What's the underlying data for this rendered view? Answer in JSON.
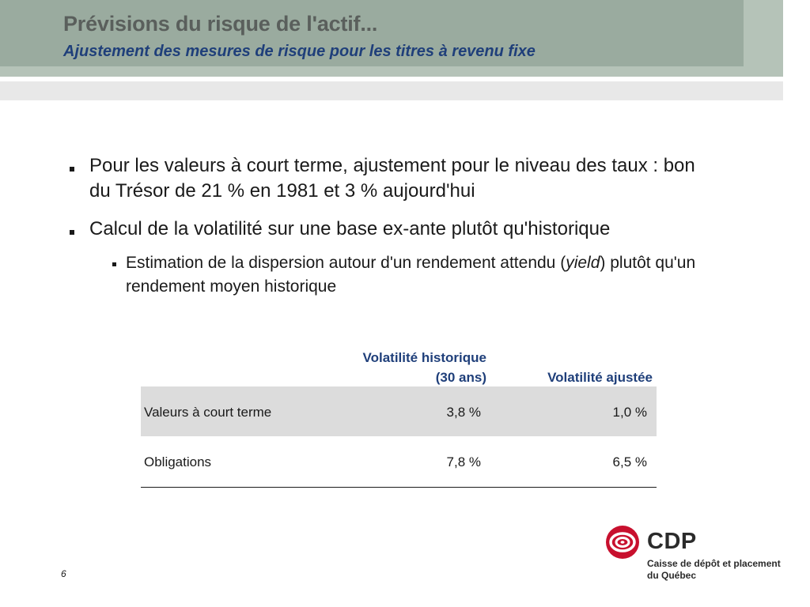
{
  "header": {
    "title": "Prévisions du risque de l'actif...",
    "subtitle": "Ajustement des mesures de risque pour les titres à revenu fixe"
  },
  "bullets": {
    "b1": "Pour les valeurs à court terme, ajustement pour le niveau des taux : bon du Trésor de 21 % en 1981 et 3 % aujourd'hui",
    "b2": "Calcul de la volatilité sur une base ex-ante plutôt qu'historique",
    "b3_before": "Estimation de la dispersion autour d'un rendement attendu (",
    "b3_italic": "yield",
    "b3_after": ") plutôt qu'un rendement moyen historique"
  },
  "table": {
    "col_hist_line1": "Volatilité historique",
    "col_hist_line2": "(30 ans)",
    "col_adj": "Volatilité ajustée",
    "rows": [
      {
        "label": "Valeurs à court terme",
        "hist": "3,8 %",
        "adj": "1,0 %"
      },
      {
        "label": "Obligations",
        "hist": "7,8 %",
        "adj": "6,5 %"
      }
    ]
  },
  "footer": {
    "page_number": "6",
    "logo_name": "CDP",
    "logo_line1": "Caisse de dépôt et placement",
    "logo_line2": "du Québec",
    "logo_color": "#c8102e"
  }
}
